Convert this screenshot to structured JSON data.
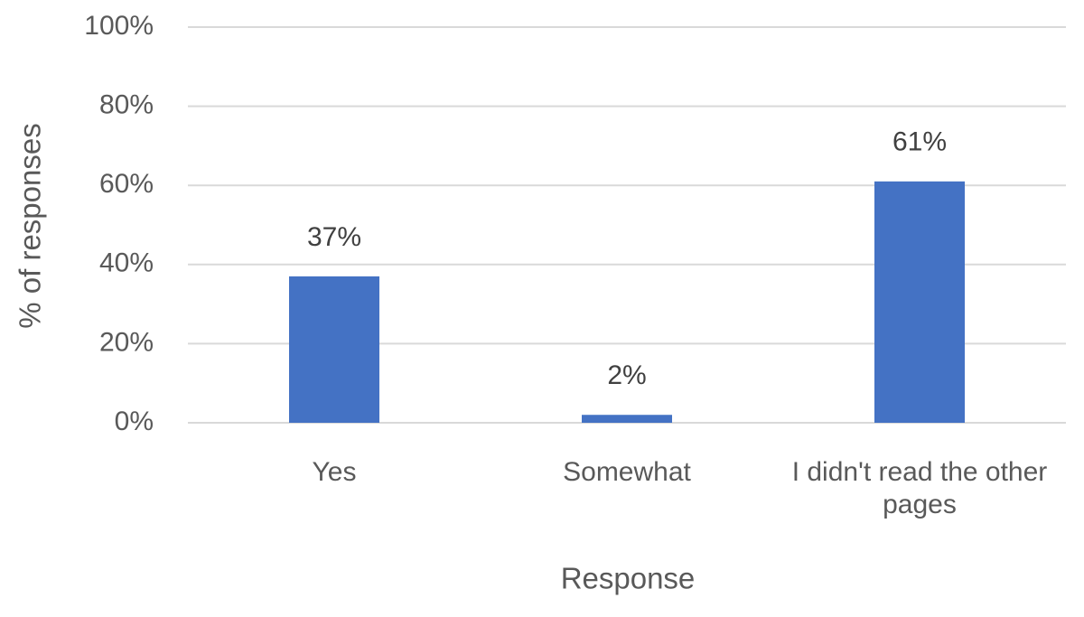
{
  "chart_data": {
    "type": "bar",
    "categories": [
      "Yes",
      "Somewhat",
      "I didn't read the other pages"
    ],
    "values": [
      37,
      2,
      61
    ],
    "value_labels": [
      "37%",
      "2%",
      "61%"
    ],
    "color": "#4472c4",
    "ylim": [
      0,
      100
    ],
    "yticks": [
      {
        "value": 0,
        "label": "0%"
      },
      {
        "value": 20,
        "label": "20%"
      },
      {
        "value": 40,
        "label": "40%"
      },
      {
        "value": 60,
        "label": "60%"
      },
      {
        "value": 80,
        "label": "80%"
      },
      {
        "value": 100,
        "label": "100%"
      }
    ],
    "grid": true,
    "x_label": "Response",
    "y_label": "% of responses"
  }
}
